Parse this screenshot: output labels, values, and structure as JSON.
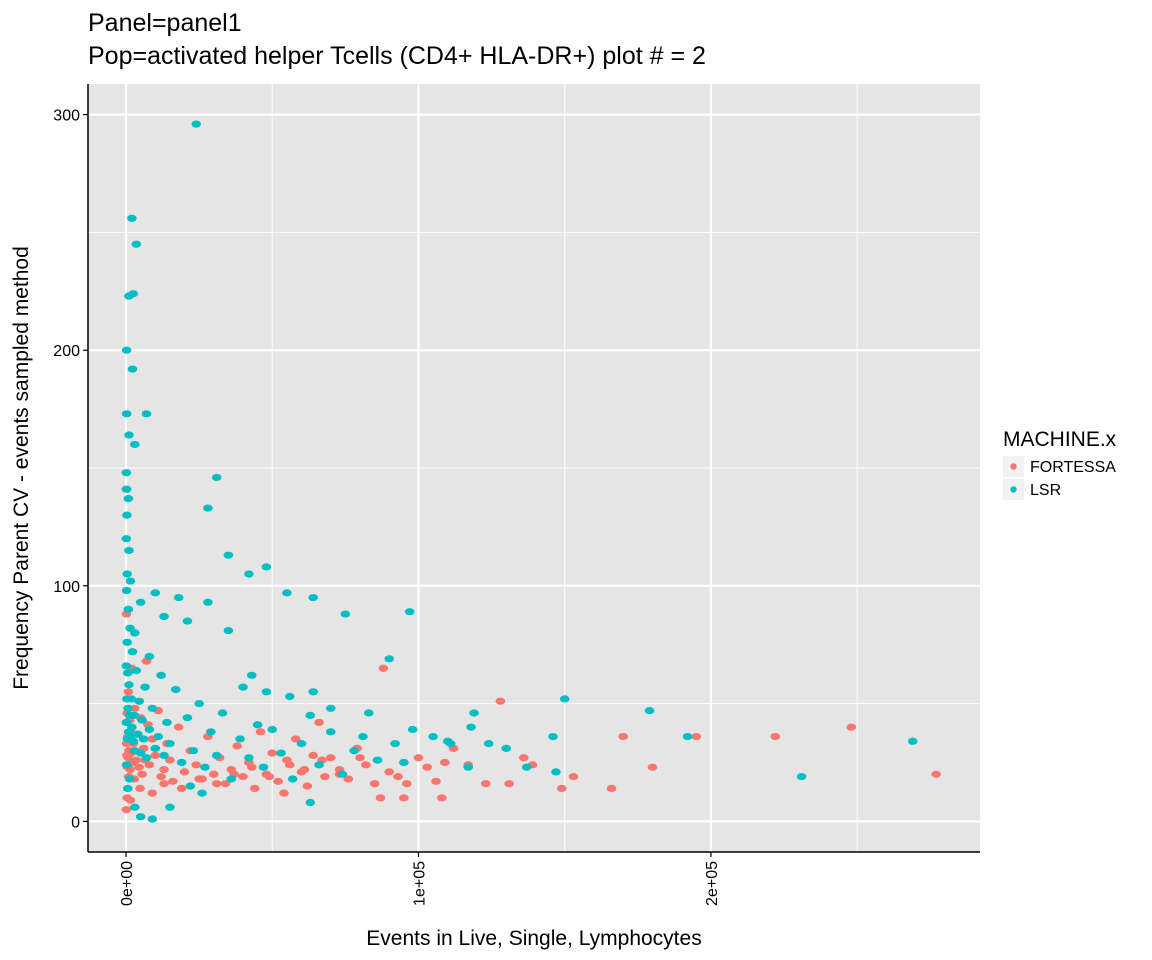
{
  "chart_data": {
    "type": "scatter",
    "title": "Panel=panel1",
    "subtitle": "Pop=activated helper Tcells (CD4+ HLA-DR+) plot # = 2",
    "xlabel": "Events in Live, Single, Lymphocytes",
    "ylabel": "Frequency Parent CV - events sampled method",
    "xlim": [
      -13000,
      292000
    ],
    "ylim": [
      -13,
      313
    ],
    "x_ticks": [
      0,
      100000,
      200000
    ],
    "x_tick_labels": [
      "0e+00",
      "1e+05",
      "2e+05"
    ],
    "y_ticks": [
      0,
      100,
      200,
      300
    ],
    "y_tick_labels": [
      "0",
      "100",
      "200",
      "300"
    ],
    "grid": true,
    "legend_title": "MACHINE.x",
    "legend_position": "right",
    "series": [
      {
        "name": "FORTESSA",
        "color": "#F8766D",
        "points": [
          [
            277000,
            20
          ],
          [
            248000,
            40
          ],
          [
            222000,
            36
          ],
          [
            195000,
            36
          ],
          [
            180000,
            23
          ],
          [
            170000,
            36
          ],
          [
            166000,
            14
          ],
          [
            153000,
            19
          ],
          [
            149000,
            14
          ],
          [
            139000,
            24
          ],
          [
            136000,
            27
          ],
          [
            131000,
            16
          ],
          [
            128000,
            51
          ],
          [
            123000,
            16
          ],
          [
            117000,
            24
          ],
          [
            112000,
            31
          ],
          [
            109000,
            25
          ],
          [
            106000,
            17
          ],
          [
            103000,
            23
          ],
          [
            100000,
            27
          ],
          [
            96000,
            16
          ],
          [
            93000,
            19
          ],
          [
            90000,
            21
          ],
          [
            87000,
            10
          ],
          [
            85000,
            16
          ],
          [
            82000,
            24
          ],
          [
            79000,
            31
          ],
          [
            76000,
            18
          ],
          [
            73000,
            22
          ],
          [
            70000,
            27
          ],
          [
            68000,
            19
          ],
          [
            66000,
            42
          ],
          [
            64000,
            28
          ],
          [
            62000,
            15
          ],
          [
            60000,
            21
          ],
          [
            58000,
            35
          ],
          [
            56000,
            24
          ],
          [
            54000,
            12
          ],
          [
            52000,
            17
          ],
          [
            50000,
            29
          ],
          [
            48000,
            20
          ],
          [
            46000,
            38
          ],
          [
            44000,
            14
          ],
          [
            42000,
            25
          ],
          [
            40000,
            19
          ],
          [
            38000,
            32
          ],
          [
            36000,
            22
          ],
          [
            34000,
            16
          ],
          [
            32000,
            27
          ],
          [
            30000,
            20
          ],
          [
            28000,
            36
          ],
          [
            26000,
            18
          ],
          [
            24000,
            24
          ],
          [
            22000,
            30
          ],
          [
            20000,
            21
          ],
          [
            18000,
            40
          ],
          [
            16000,
            17
          ],
          [
            15000,
            26
          ],
          [
            14000,
            33
          ],
          [
            13000,
            22
          ],
          [
            12000,
            19
          ],
          [
            11000,
            47
          ],
          [
            10000,
            28
          ],
          [
            9000,
            35
          ],
          [
            8000,
            24
          ],
          [
            7500,
            41
          ],
          [
            7000,
            68
          ],
          [
            6500,
            26
          ],
          [
            6000,
            31
          ],
          [
            5500,
            20
          ],
          [
            5000,
            44
          ],
          [
            4500,
            23
          ],
          [
            4000,
            37
          ],
          [
            3500,
            26
          ],
          [
            3000,
            48
          ],
          [
            2800,
            18
          ],
          [
            2500,
            33
          ],
          [
            2200,
            25
          ],
          [
            2000,
            65
          ],
          [
            1800,
            29
          ],
          [
            1600,
            38
          ],
          [
            1400,
            22
          ],
          [
            1200,
            43
          ],
          [
            1000,
            30
          ],
          [
            900,
            19
          ],
          [
            800,
            55
          ],
          [
            700,
            27
          ],
          [
            600,
            36
          ],
          [
            500,
            23
          ],
          [
            400,
            46
          ],
          [
            300,
            28
          ],
          [
            200,
            33
          ],
          [
            100,
            141
          ],
          [
            100,
            88
          ],
          [
            100,
            5
          ],
          [
            400,
            10
          ],
          [
            1500,
            9
          ],
          [
            4800,
            14
          ],
          [
            9000,
            12
          ],
          [
            13000,
            16
          ],
          [
            19000,
            14
          ],
          [
            25000,
            18
          ],
          [
            31000,
            16
          ],
          [
            37000,
            20
          ],
          [
            43000,
            23
          ],
          [
            49000,
            19
          ],
          [
            55000,
            26
          ],
          [
            61000,
            22
          ],
          [
            67000,
            26
          ],
          [
            73000,
            20
          ],
          [
            80000,
            27
          ],
          [
            88000,
            65
          ],
          [
            95000,
            10
          ],
          [
            108000,
            10
          ]
        ]
      },
      {
        "name": "LSR",
        "color": "#00BFC4",
        "points": [
          [
            24000,
            296
          ],
          [
            2000,
            256
          ],
          [
            3500,
            245
          ],
          [
            1000,
            223
          ],
          [
            2500,
            224
          ],
          [
            200,
            200
          ],
          [
            2200,
            192
          ],
          [
            200,
            173
          ],
          [
            7000,
            173
          ],
          [
            1000,
            164
          ],
          [
            3000,
            160
          ],
          [
            100,
            148
          ],
          [
            31000,
            146
          ],
          [
            200,
            141
          ],
          [
            800,
            137
          ],
          [
            28000,
            133
          ],
          [
            300,
            130
          ],
          [
            100,
            120
          ],
          [
            35000,
            113
          ],
          [
            1000,
            115
          ],
          [
            48000,
            108
          ],
          [
            42000,
            105
          ],
          [
            400,
            105
          ],
          [
            1500,
            102
          ],
          [
            55000,
            97
          ],
          [
            64000,
            95
          ],
          [
            10000,
            97
          ],
          [
            18000,
            95
          ],
          [
            28000,
            93
          ],
          [
            5000,
            93
          ],
          [
            75000,
            88
          ],
          [
            97000,
            89
          ],
          [
            21000,
            85
          ],
          [
            35000,
            81
          ],
          [
            90000,
            69
          ],
          [
            3000,
            80
          ],
          [
            13000,
            87
          ],
          [
            8000,
            70
          ],
          [
            40000,
            57
          ],
          [
            43000,
            62
          ],
          [
            64000,
            55
          ],
          [
            56000,
            53
          ],
          [
            48000,
            55
          ],
          [
            83000,
            46
          ],
          [
            70000,
            48
          ],
          [
            63000,
            45
          ],
          [
            98000,
            39
          ],
          [
            111000,
            33
          ],
          [
            118000,
            40
          ],
          [
            119000,
            46
          ],
          [
            130000,
            31
          ],
          [
            124000,
            33
          ],
          [
            137000,
            23
          ],
          [
            146000,
            36
          ],
          [
            150000,
            52
          ],
          [
            147000,
            21
          ],
          [
            179000,
            47
          ],
          [
            192000,
            36
          ],
          [
            231000,
            19
          ],
          [
            269000,
            34
          ],
          [
            117000,
            23
          ],
          [
            110000,
            34
          ],
          [
            105000,
            36
          ],
          [
            95000,
            25
          ],
          [
            92000,
            33
          ],
          [
            86000,
            26
          ],
          [
            81000,
            36
          ],
          [
            78000,
            30
          ],
          [
            74000,
            20
          ],
          [
            70000,
            38
          ],
          [
            66000,
            24
          ],
          [
            63000,
            8
          ],
          [
            60000,
            33
          ],
          [
            57000,
            18
          ],
          [
            53000,
            29
          ],
          [
            50000,
            39
          ],
          [
            47000,
            23
          ],
          [
            45000,
            41
          ],
          [
            42000,
            27
          ],
          [
            39000,
            35
          ],
          [
            36000,
            18
          ],
          [
            33000,
            46
          ],
          [
            31000,
            28
          ],
          [
            29000,
            38
          ],
          [
            27000,
            23
          ],
          [
            25000,
            50
          ],
          [
            23000,
            30
          ],
          [
            21000,
            44
          ],
          [
            19000,
            25
          ],
          [
            17000,
            56
          ],
          [
            15000,
            33
          ],
          [
            14000,
            42
          ],
          [
            13000,
            28
          ],
          [
            12000,
            62
          ],
          [
            11000,
            36
          ],
          [
            10000,
            31
          ],
          [
            9000,
            48
          ],
          [
            8000,
            39
          ],
          [
            7000,
            27
          ],
          [
            6500,
            57
          ],
          [
            6000,
            35
          ],
          [
            5500,
            43
          ],
          [
            5000,
            29
          ],
          [
            4500,
            51
          ],
          [
            4000,
            37
          ],
          [
            3500,
            64
          ],
          [
            3000,
            30
          ],
          [
            2800,
            45
          ],
          [
            2500,
            34
          ],
          [
            2200,
            72
          ],
          [
            2000,
            40
          ],
          [
            1800,
            52
          ],
          [
            1600,
            36
          ],
          [
            1400,
            82
          ],
          [
            1200,
            45
          ],
          [
            1000,
            58
          ],
          [
            900,
            38
          ],
          [
            800,
            90
          ],
          [
            700,
            48
          ],
          [
            600,
            63
          ],
          [
            500,
            35
          ],
          [
            400,
            76
          ],
          [
            300,
            52
          ],
          [
            200,
            98
          ],
          [
            100,
            42
          ],
          [
            100,
            66
          ],
          [
            200,
            24
          ],
          [
            600,
            14
          ],
          [
            1200,
            18
          ],
          [
            3000,
            6
          ],
          [
            9000,
            1
          ],
          [
            15000,
            6
          ],
          [
            22000,
            15
          ],
          [
            26000,
            12
          ],
          [
            5000,
            2
          ]
        ]
      }
    ]
  }
}
